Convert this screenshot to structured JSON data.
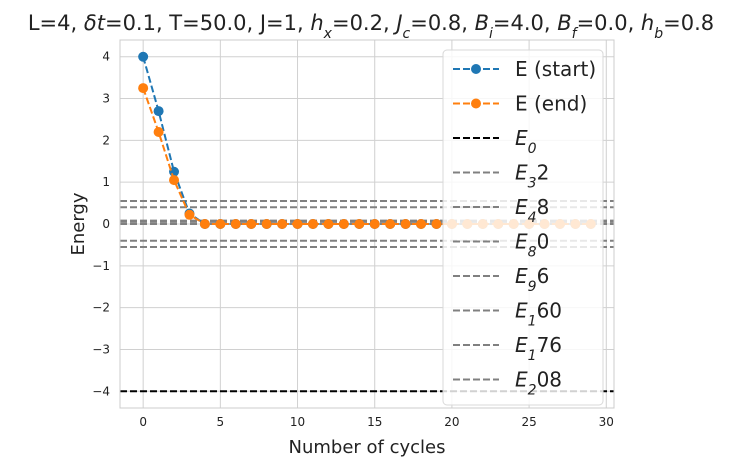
{
  "chart_data": {
    "type": "line",
    "title_parts": [
      {
        "t": "L=4, "
      },
      {
        "t": "δt",
        "i": true
      },
      {
        "t": "=0.1, T=50.0, J=1, "
      },
      {
        "t": "h",
        "i": true
      },
      {
        "t": "x",
        "i": true,
        "sub": true
      },
      {
        "t": "=0.2, "
      },
      {
        "t": "J",
        "i": true
      },
      {
        "t": "c",
        "i": true,
        "sub": true
      },
      {
        "t": "=0.8, "
      },
      {
        "t": "B",
        "i": true
      },
      {
        "t": "i",
        "i": true,
        "sub": true
      },
      {
        "t": "=4.0, "
      },
      {
        "t": "B",
        "i": true
      },
      {
        "t": "f",
        "i": true,
        "sub": true
      },
      {
        "t": "=0.0, "
      },
      {
        "t": "h",
        "i": true
      },
      {
        "t": "b",
        "i": true,
        "sub": true
      },
      {
        "t": "=0.8"
      }
    ],
    "xlabel": "Number of cycles",
    "ylabel": "Energy",
    "xlim": [
      -1.5,
      30.5
    ],
    "ylim": [
      -4.4,
      4.4
    ],
    "xticks": [
      0,
      5,
      10,
      15,
      20,
      25,
      30
    ],
    "yticks": [
      -4,
      -3,
      -2,
      -1,
      0,
      1,
      2,
      3,
      4
    ],
    "ytick_labels": [
      "−4",
      "−3",
      "−2",
      "−1",
      "0",
      "1",
      "2",
      "3",
      "4"
    ],
    "grid": true,
    "legend_position": "right",
    "series": [
      {
        "name": "E (start)",
        "color": "#1f77b4",
        "x": [
          0,
          1,
          2,
          3,
          4,
          5,
          6,
          7,
          8,
          9,
          10,
          11,
          12,
          13,
          14,
          15,
          16,
          17,
          18,
          19,
          20,
          21,
          22,
          23,
          24,
          25,
          26,
          27,
          28,
          29
        ],
        "y": [
          4.0,
          2.7,
          1.25,
          0.25,
          0.0,
          0.0,
          0.0,
          0.0,
          0.0,
          0.0,
          0.0,
          0.0,
          0.0,
          0.0,
          0.0,
          0.0,
          0.0,
          0.0,
          0.0,
          0.0,
          0.0,
          0.0,
          0.0,
          0.0,
          0.0,
          0.0,
          0.0,
          0.0,
          0.0,
          0.0
        ]
      },
      {
        "name": "E (end)",
        "color": "#ff7f0e",
        "x": [
          0,
          1,
          2,
          3,
          4,
          5,
          6,
          7,
          8,
          9,
          10,
          11,
          12,
          13,
          14,
          15,
          16,
          17,
          18,
          19,
          20,
          21,
          22,
          23,
          24,
          25,
          26,
          27,
          28,
          29
        ],
        "y": [
          3.25,
          2.2,
          1.05,
          0.22,
          0.0,
          0.0,
          0.0,
          0.0,
          0.0,
          0.0,
          0.0,
          0.0,
          0.0,
          0.0,
          0.0,
          0.0,
          0.0,
          0.0,
          0.0,
          0.0,
          0.0,
          0.0,
          0.0,
          0.0,
          0.0,
          0.0,
          0.0,
          0.0,
          0.0,
          0.0
        ]
      }
    ],
    "reference_lines": [
      {
        "base": "E",
        "sub": "0",
        "rest": "",
        "y": -4.0,
        "color": "#000000"
      },
      {
        "base": "E",
        "sub": "3",
        "rest": "2",
        "y": -0.55,
        "color": "#808080"
      },
      {
        "base": "E",
        "sub": "4",
        "rest": "8",
        "y": -0.4,
        "color": "#808080"
      },
      {
        "base": "E",
        "sub": "8",
        "rest": "0",
        "y": 0.0,
        "color": "#808080"
      },
      {
        "base": "E",
        "sub": "9",
        "rest": "6",
        "y": 0.05,
        "color": "#808080"
      },
      {
        "base": "E",
        "sub": "1",
        "rest": "60",
        "y": 0.4,
        "color": "#808080"
      },
      {
        "base": "E",
        "sub": "1",
        "rest": "76",
        "y": 0.55,
        "color": "#808080"
      },
      {
        "base": "E",
        "sub": "2",
        "rest": "08",
        "y": 0.08,
        "color": "#808080"
      }
    ]
  }
}
